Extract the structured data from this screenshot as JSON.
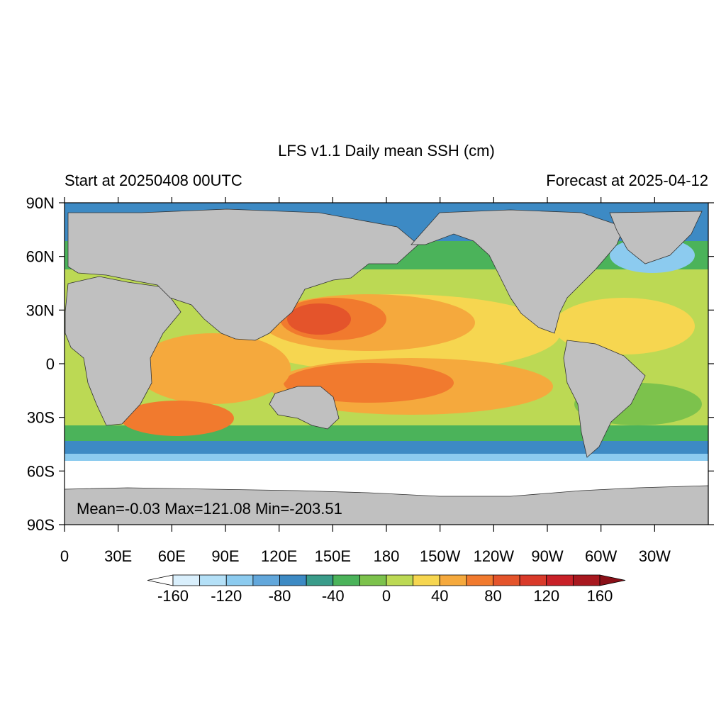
{
  "header": {
    "title": "LFS v1.1 Daily mean SSH (cm)",
    "left_subtitle": "Start at 20250408 00UTC",
    "right_subtitle": "Forecast at 2025-04-12"
  },
  "stats": {
    "text": "Mean=-0.03  Max=121.08  Min=-203.51"
  },
  "axes": {
    "lat_labels": [
      "90N",
      "60N",
      "30N",
      "0",
      "30S",
      "60S",
      "90S"
    ],
    "lon_labels": [
      "0",
      "30E",
      "60E",
      "90E",
      "120E",
      "150E",
      "180",
      "150W",
      "120W",
      "90W",
      "60W",
      "30W"
    ]
  },
  "colorbar": {
    "labels": [
      "-160",
      "-120",
      "-80",
      "-40",
      "0",
      "40",
      "80",
      "120",
      "160"
    ],
    "colors": [
      "#ffffff",
      "#d9effc",
      "#b4e0f7",
      "#8ccbef",
      "#62a7db",
      "#3d8ac4",
      "#3a9c8a",
      "#4bb35a",
      "#7cc24c",
      "#bcd954",
      "#f6d650",
      "#f5a93d",
      "#f17a2e",
      "#e4542b",
      "#d93a2a",
      "#c82128",
      "#a8181f",
      "#8a1018"
    ]
  },
  "colors": {
    "land": "#c0c0c0",
    "ocean_mid": "#bcd954",
    "ocean_warm": "#f5a93d",
    "ocean_hot": "#e4542b",
    "ocean_cool": "#4bb35a",
    "ocean_cold": "#3d8ac4",
    "antarctic_ice": "#ffffff"
  }
}
